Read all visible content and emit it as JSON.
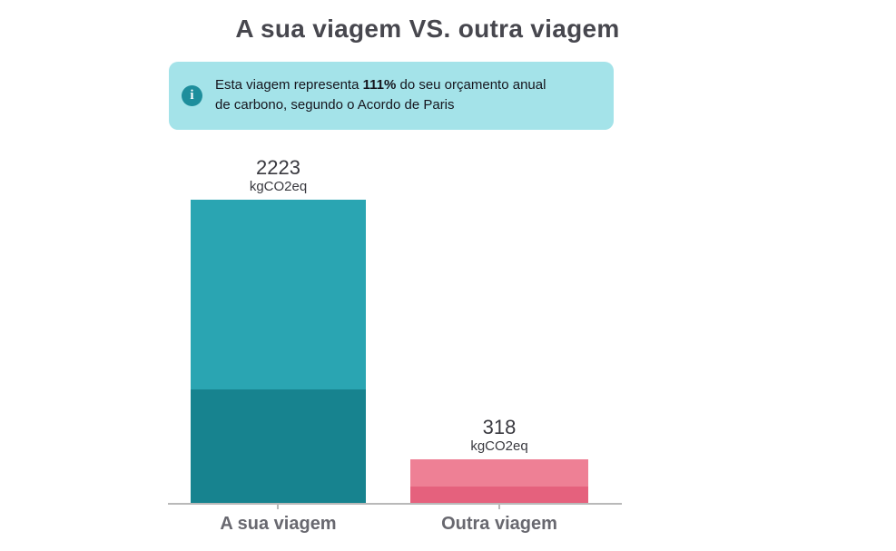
{
  "page": {
    "title": "A sua viagem VS. outra viagem"
  },
  "info_banner": {
    "icon": "info-icon",
    "icon_glyph": "i",
    "line1_prefix": "Esta viagem representa ",
    "line1_bold": "111%",
    "line1_suffix": " do seu orçamento anual",
    "line2": "de carbono, segundo o Acordo de Paris",
    "background_color": "#a4e3e9",
    "icon_color": "#1e8e9c",
    "text_color": "#16161e"
  },
  "chart_data": {
    "type": "bar",
    "title": "A sua viagem VS. outra viagem",
    "categories": [
      "A sua viagem",
      "Outra viagem"
    ],
    "values": [
      2223,
      318
    ],
    "unit": "kgCO2eq",
    "ylim": [
      0,
      2223
    ],
    "grid": false,
    "legend": "none",
    "axis_color": "#b9b9b9",
    "bars": [
      {
        "category": "A sua viagem",
        "value": 2223,
        "unit": "kgCO2eq",
        "color": "#2aa5b2",
        "color_dark": "#17838f",
        "dark_fraction": 0.375
      },
      {
        "category": "Outra viagem",
        "value": 318,
        "unit": "kgCO2eq",
        "color": "#ee8095",
        "color_dark": "#e5617d",
        "dark_fraction": 0.38
      }
    ]
  },
  "colors": {
    "background": "#ffffff",
    "title_text": "#47474e",
    "value_label_text": "#39393f",
    "category_label_text": "#68686f"
  }
}
